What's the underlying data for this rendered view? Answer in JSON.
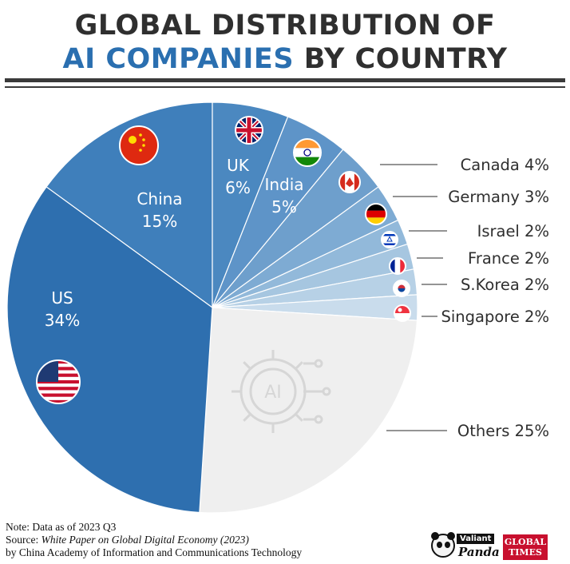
{
  "header": {
    "title_line1": "GLOBAL DISTRIBUTION OF",
    "title_line2_accent": "AI COMPANIES",
    "title_line2_rest": " BY COUNTRY"
  },
  "chart_data": {
    "type": "pie",
    "title": "GLOBAL DISTRIBUTION OF AI COMPANIES BY COUNTRY",
    "categories": [
      "US",
      "China",
      "UK",
      "India",
      "Canada",
      "Germany",
      "Israel",
      "France",
      "S.Korea",
      "Singapore",
      "Others"
    ],
    "values": [
      34,
      15,
      6,
      5,
      4,
      3,
      2,
      2,
      2,
      2,
      25
    ],
    "labels": [
      "US\n34%",
      "China\n15%",
      "UK\n6%",
      "India\n5%",
      "Canada 4%",
      "Germany 3%",
      "Israel 2%",
      "France 2%",
      "S.Korea 2%",
      "Singapore 2%",
      "Others 25%"
    ],
    "colors": [
      "#2e6faf",
      "#3f7fbb",
      "#4b88c0",
      "#5e94c8",
      "#6e9fcc",
      "#7eabd3",
      "#92b9da",
      "#a6c6e0",
      "#b7d1e6",
      "#c9dcec",
      "#efefef"
    ],
    "label_position": [
      "inside",
      "inside",
      "inside",
      "inside",
      "outside",
      "outside",
      "outside",
      "outside",
      "outside",
      "outside",
      "outside"
    ],
    "flags": [
      "us-flag-icon",
      "china-flag-icon",
      "uk-flag-icon",
      "india-flag-icon",
      "canada-flag-icon",
      "germany-flag-icon",
      "israel-flag-icon",
      "france-flag-icon",
      "south-korea-flag-icon",
      "singapore-flag-icon",
      "ai-chip-icon"
    ]
  },
  "footer": {
    "note": "Note: Data as of 2023 Q3",
    "source_prefix": "Source: ",
    "source_title": "White Paper on Global Digital Economy (2023)",
    "source_org": "by China Academy of Information and Communications Technology",
    "logo_valiant": "Valiant",
    "logo_panda": "Panda",
    "logo_global": "GLOBAL",
    "logo_times": "TIMES"
  }
}
